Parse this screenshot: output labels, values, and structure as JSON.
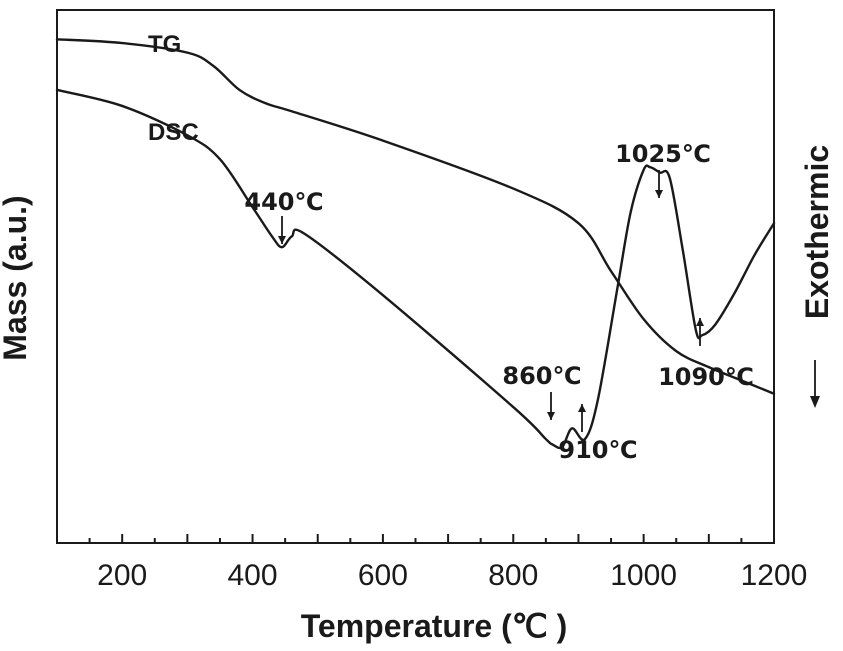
{
  "chart_data": {
    "type": "line",
    "xlabel": "Temperature (℃ )",
    "ylabel": "Mass (a.u.)",
    "right_label": "Exothermic",
    "xlim": [
      100,
      1200
    ],
    "x_ticks": [
      200,
      400,
      600,
      800,
      1000,
      1200
    ],
    "y_ticks_labeled": false,
    "series": [
      {
        "name": "TG",
        "x": [
          100,
          200,
          300,
          340,
          380,
          420,
          460,
          600,
          800,
          900,
          950,
          1000,
          1050,
          1100,
          1150,
          1200
        ],
        "y": [
          94.5,
          93.8,
          92.0,
          89.5,
          85.0,
          82.5,
          81.0,
          75.5,
          66.5,
          60.0,
          51.0,
          42.0,
          36.0,
          33.0,
          30.5,
          28.0
        ]
      },
      {
        "name": "DSC",
        "x": [
          100,
          200,
          300,
          350,
          400,
          430,
          445,
          460,
          480,
          600,
          800,
          850,
          860,
          875,
          890,
          910,
          930,
          960,
          980,
          1000,
          1010,
          1025,
          1040,
          1060,
          1080,
          1090,
          1110,
          1140,
          1170,
          1200
        ],
        "y": [
          85.0,
          82.0,
          76.5,
          72.0,
          63.0,
          57.5,
          55.5,
          57.5,
          58.0,
          46.5,
          25.5,
          19.5,
          18.5,
          18.0,
          21.5,
          19.5,
          27.0,
          48.0,
          62.0,
          70.0,
          70.5,
          69.5,
          68.5,
          55.0,
          40.0,
          39.0,
          41.0,
          47.0,
          54.0,
          60.0
        ]
      }
    ],
    "annotations": [
      {
        "text": "440℃",
        "x": 440,
        "arrow": "down"
      },
      {
        "text": "860℃",
        "x": 860,
        "arrow": "down"
      },
      {
        "text": "910℃",
        "x": 910,
        "arrow": "up"
      },
      {
        "text": "1025℃",
        "x": 1025,
        "arrow": "down"
      },
      {
        "text": "1090℃",
        "x": 1090,
        "arrow": "up"
      }
    ]
  }
}
